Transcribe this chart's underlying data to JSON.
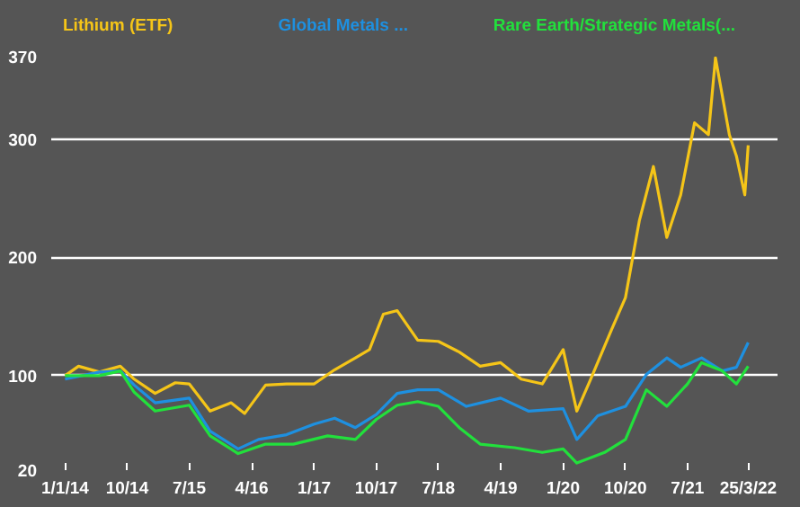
{
  "chart_data": {
    "type": "line",
    "grid": "y",
    "marker": "none",
    "line_style": "solid",
    "xlim": [
      "2013-11-01",
      "2022-08-01"
    ],
    "ylim": [
      20,
      370
    ],
    "yticks": [
      20,
      100,
      200,
      300,
      370
    ],
    "xticks": [
      {
        "value": "2014-01-01",
        "label": "1/1/14"
      },
      {
        "value": "2014-10-01",
        "label": "10/14"
      },
      {
        "value": "2015-07-01",
        "label": "7/15"
      },
      {
        "value": "2016-04-01",
        "label": "4/16"
      },
      {
        "value": "2017-01-01",
        "label": "1/17"
      },
      {
        "value": "2017-10-01",
        "label": "10/17"
      },
      {
        "value": "2018-07-01",
        "label": "7/18"
      },
      {
        "value": "2019-04-01",
        "label": "4/19"
      },
      {
        "value": "2020-01-01",
        "label": "1/20"
      },
      {
        "value": "2020-10-01",
        "label": "10/20"
      },
      {
        "value": "2021-07-01",
        "label": "7/21"
      },
      {
        "value": "2022-03-25",
        "label": "25/3/22"
      }
    ],
    "series": [
      {
        "name": "Lithium (ETF)",
        "color": "#f5c518",
        "x": [
          "2014-01-01",
          "2014-03-01",
          "2014-06-01",
          "2014-09-01",
          "2014-11-01",
          "2015-02-01",
          "2015-05-01",
          "2015-07-01",
          "2015-10-01",
          "2016-01-01",
          "2016-03-01",
          "2016-06-01",
          "2016-09-01",
          "2017-01-01",
          "2017-04-01",
          "2017-07-01",
          "2017-09-01",
          "2017-11-01",
          "2018-01-01",
          "2018-04-01",
          "2018-07-01",
          "2018-10-01",
          "2019-01-01",
          "2019-04-01",
          "2019-07-01",
          "2019-10-01",
          "2020-01-01",
          "2020-03-01",
          "2020-05-01",
          "2020-08-01",
          "2020-10-01",
          "2020-12-01",
          "2021-02-01",
          "2021-04-01",
          "2021-06-01",
          "2021-08-01",
          "2021-10-01",
          "2021-11-01",
          "2022-01-01",
          "2022-02-01",
          "2022-03-10",
          "2022-03-25"
        ],
        "values": [
          100,
          108,
          103,
          108,
          97,
          85,
          94,
          93,
          70,
          77,
          68,
          92,
          93,
          93,
          105,
          115,
          122,
          152,
          155,
          130,
          129,
          120,
          108,
          111,
          97,
          93,
          122,
          70,
          97,
          139,
          166,
          231,
          277,
          217,
          253,
          314,
          304,
          369,
          304,
          286,
          253,
          295
        ]
      },
      {
        "name": "Global Metals ...",
        "color": "#1e90e0",
        "x": [
          "2014-01-01",
          "2014-06-01",
          "2014-09-01",
          "2014-11-01",
          "2015-02-01",
          "2015-07-01",
          "2015-10-01",
          "2016-02-01",
          "2016-05-01",
          "2016-09-01",
          "2017-01-01",
          "2017-04-01",
          "2017-07-01",
          "2017-10-01",
          "2018-01-01",
          "2018-04-01",
          "2018-07-01",
          "2018-11-01",
          "2019-04-01",
          "2019-08-01",
          "2020-01-01",
          "2020-03-01",
          "2020-06-01",
          "2020-10-01",
          "2021-01-01",
          "2021-04-01",
          "2021-06-01",
          "2021-09-01",
          "2021-12-01",
          "2022-02-01",
          "2022-03-25"
        ],
        "values": [
          97,
          103,
          104,
          92,
          77,
          81,
          53,
          38,
          46,
          50,
          59,
          64,
          56,
          67,
          85,
          88,
          88,
          74,
          81,
          70,
          72,
          46,
          66,
          74,
          101,
          115,
          107,
          115,
          104,
          107,
          128
        ]
      },
      {
        "name": "Rare Earth/Strategic Metals(...",
        "color": "#22e03c",
        "x": [
          "2014-01-01",
          "2014-06-01",
          "2014-09-01",
          "2014-11-01",
          "2015-02-01",
          "2015-07-01",
          "2015-10-01",
          "2016-02-01",
          "2016-06-01",
          "2016-10-01",
          "2017-03-01",
          "2017-07-01",
          "2017-10-01",
          "2018-01-01",
          "2018-04-01",
          "2018-07-01",
          "2018-10-01",
          "2019-01-01",
          "2019-06-01",
          "2019-10-01",
          "2020-01-01",
          "2020-03-01",
          "2020-07-01",
          "2020-10-01",
          "2021-01-01",
          "2021-04-01",
          "2021-07-01",
          "2021-09-01",
          "2021-12-01",
          "2022-02-01",
          "2022-03-25"
        ],
        "values": [
          100,
          100,
          104,
          86,
          70,
          75,
          49,
          34,
          42,
          42,
          49,
          46,
          63,
          75,
          78,
          74,
          56,
          42,
          39,
          35,
          38,
          26,
          35,
          46,
          88,
          74,
          93,
          111,
          104,
          93,
          108
        ]
      }
    ]
  }
}
